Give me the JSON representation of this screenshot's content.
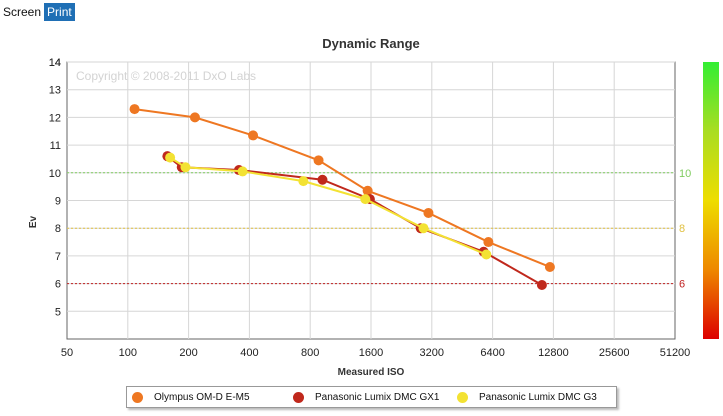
{
  "tabs": [
    {
      "label": "Screen",
      "active": false
    },
    {
      "label": "Print",
      "active": true
    }
  ],
  "chart_data": {
    "type": "line",
    "title": "Dynamic Range",
    "xlabel": "Measured ISO",
    "ylabel": "Ev",
    "x_scale": "log2",
    "x_ticks": [
      "50",
      "100",
      "200",
      "400",
      "800",
      "1600",
      "3200",
      "6400",
      "12800",
      "25600",
      "51200"
    ],
    "y_ticks": [
      "5",
      "6",
      "7",
      "8",
      "9",
      "10",
      "11",
      "12",
      "13",
      "14"
    ],
    "xlim": [
      50,
      51200
    ],
    "ylim": [
      4,
      14
    ],
    "watermark": "Copyright © 2008-2011 DxO Labs",
    "grid": true,
    "legend_position": "bottom",
    "reference_lines": [
      {
        "value": 10,
        "label": "10",
        "color": "#80cc60"
      },
      {
        "value": 8,
        "label": "8",
        "color": "#e0c040"
      },
      {
        "value": 6,
        "label": "6",
        "color": "#c02020"
      }
    ],
    "color_scale": [
      "#33ee33",
      "#aadd22",
      "#eedd00",
      "#ee8800",
      "#dd0000"
    ],
    "series": [
      {
        "name": "Olympus OM-D E-M5",
        "color": "#ee7722",
        "x": [
          108,
          215,
          417,
          880,
          1540,
          3080,
          6100,
          12300
        ],
        "y": [
          12.3,
          12.0,
          11.35,
          10.45,
          9.35,
          8.55,
          7.5,
          6.6
        ]
      },
      {
        "name": "Panasonic Lumix DMC GX1",
        "color": "#c0281c",
        "x": [
          157,
          185,
          355,
          920,
          1580,
          2820,
          5780,
          11230
        ],
        "y": [
          10.6,
          10.2,
          10.1,
          9.75,
          9.05,
          8.0,
          7.15,
          5.95
        ]
      },
      {
        "name": "Panasonic Lumix DMC G3",
        "color": "#f3e233",
        "x": [
          162,
          193,
          370,
          740,
          1500,
          2910,
          5960
        ],
        "y": [
          10.55,
          10.2,
          10.05,
          9.7,
          9.05,
          8.0,
          7.05
        ]
      }
    ]
  }
}
